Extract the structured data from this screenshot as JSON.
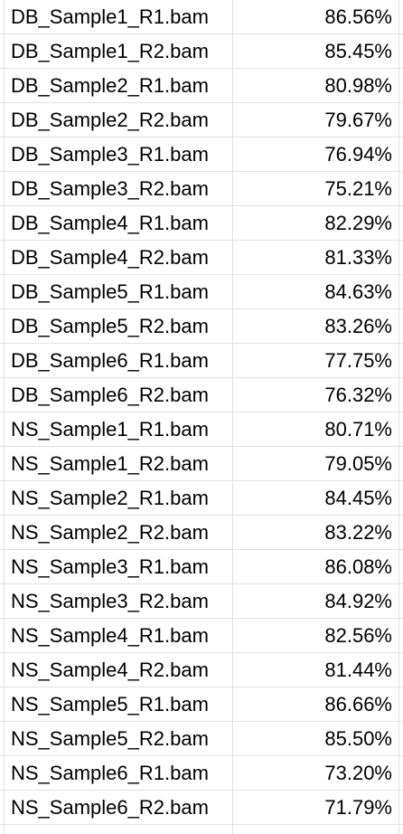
{
  "sheet": {
    "rows": [
      {
        "file": "DB_Sample1_R1.bam",
        "value": "86.56%"
      },
      {
        "file": "DB_Sample1_R2.bam",
        "value": "85.45%"
      },
      {
        "file": "DB_Sample2_R1.bam",
        "value": "80.98%"
      },
      {
        "file": "DB_Sample2_R2.bam",
        "value": "79.67%"
      },
      {
        "file": "DB_Sample3_R1.bam",
        "value": "76.94%"
      },
      {
        "file": "DB_Sample3_R2.bam",
        "value": "75.21%"
      },
      {
        "file": "DB_Sample4_R1.bam",
        "value": "82.29%"
      },
      {
        "file": "DB_Sample4_R2.bam",
        "value": "81.33%"
      },
      {
        "file": "DB_Sample5_R1.bam",
        "value": "84.63%"
      },
      {
        "file": "DB_Sample5_R2.bam",
        "value": "83.26%"
      },
      {
        "file": "DB_Sample6_R1.bam",
        "value": "77.75%"
      },
      {
        "file": "DB_Sample6_R2.bam",
        "value": "76.32%"
      },
      {
        "file": "NS_Sample1_R1.bam",
        "value": "80.71%"
      },
      {
        "file": "NS_Sample1_R2.bam",
        "value": "79.05%"
      },
      {
        "file": "NS_Sample2_R1.bam",
        "value": "84.45%"
      },
      {
        "file": "NS_Sample2_R2.bam",
        "value": "83.22%"
      },
      {
        "file": "NS_Sample3_R1.bam",
        "value": "86.08%"
      },
      {
        "file": "NS_Sample3_R2.bam",
        "value": "84.92%"
      },
      {
        "file": "NS_Sample4_R1.bam",
        "value": "82.56%"
      },
      {
        "file": "NS_Sample4_R2.bam",
        "value": "81.44%"
      },
      {
        "file": "NS_Sample5_R1.bam",
        "value": "86.66%"
      },
      {
        "file": "NS_Sample5_R2.bam",
        "value": "85.50%"
      },
      {
        "file": "NS_Sample6_R1.bam",
        "value": "73.20%"
      },
      {
        "file": "NS_Sample6_R2.bam",
        "value": "71.79%"
      }
    ]
  }
}
